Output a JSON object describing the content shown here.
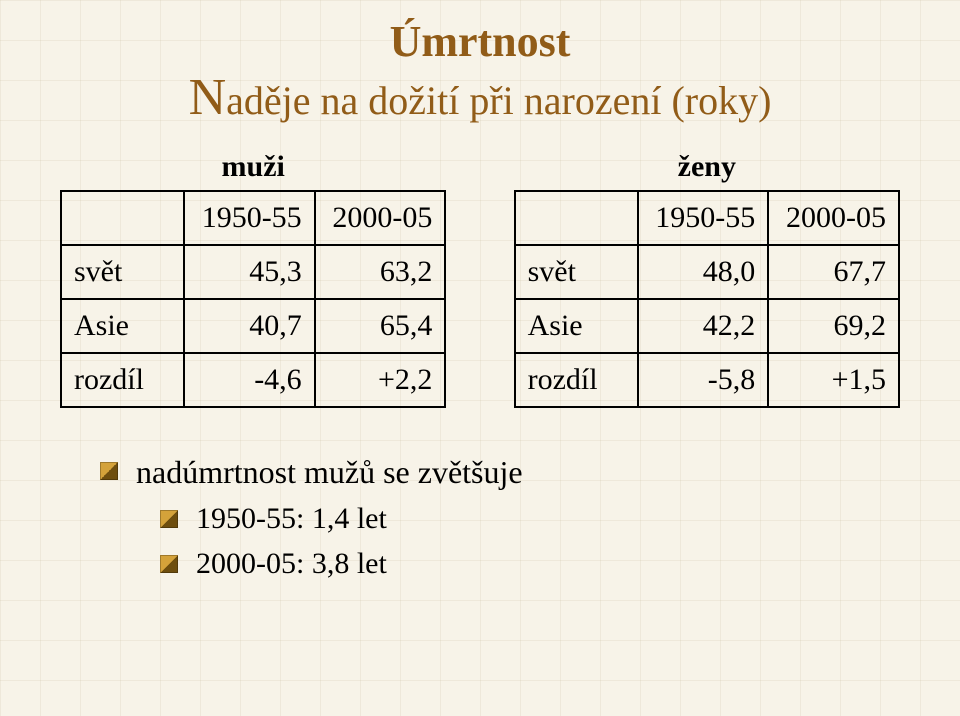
{
  "title": {
    "line1": "Úmrtnost",
    "line2_cap": "N",
    "line2_rest": "aděje na dožití při narození (roky)",
    "color": "#915c18"
  },
  "genders": {
    "left": "muži",
    "right": "ženy"
  },
  "table_left": {
    "head": {
      "c1": "1950-55",
      "c2": "2000-05"
    },
    "rows": [
      {
        "label": "svět",
        "c1": "45,3",
        "c2": "63,2"
      },
      {
        "label": "Asie",
        "c1": "40,7",
        "c2": "65,4"
      },
      {
        "label": "rozdíl",
        "c1": "-4,6",
        "c2": "+2,2"
      }
    ]
  },
  "table_right": {
    "head": {
      "c1": "1950-55",
      "c2": "2000-05"
    },
    "rows": [
      {
        "label": "svět",
        "c1": "48,0",
        "c2": "67,7"
      },
      {
        "label": "Asie",
        "c1": "42,2",
        "c2": "69,2"
      },
      {
        "label": "rozdíl",
        "c1": "-5,8",
        "c2": "+1,5"
      }
    ]
  },
  "bullets": {
    "main": "nadúmrtnost mužů se zvětšuje",
    "sub1": "1950-55: 1,4 let",
    "sub2": "2000-05: 3,8 let"
  },
  "style": {
    "background_color": "#f7f3e8",
    "grid_color": "rgba(200,190,160,0.20)",
    "table_border": "#000000",
    "text_color": "#000000",
    "font_family": "Times New Roman",
    "title_fontsize": 44,
    "subtitle_fontsize": 40,
    "subtitle_cap_fontsize": 52,
    "gender_fontsize": 30,
    "table_fontsize": 30,
    "bullet_fontsize": 32,
    "bullet_sub_fontsize": 30,
    "bullet_fill_light": "#d4a23a",
    "bullet_fill_dark": "#6e4e0e"
  }
}
